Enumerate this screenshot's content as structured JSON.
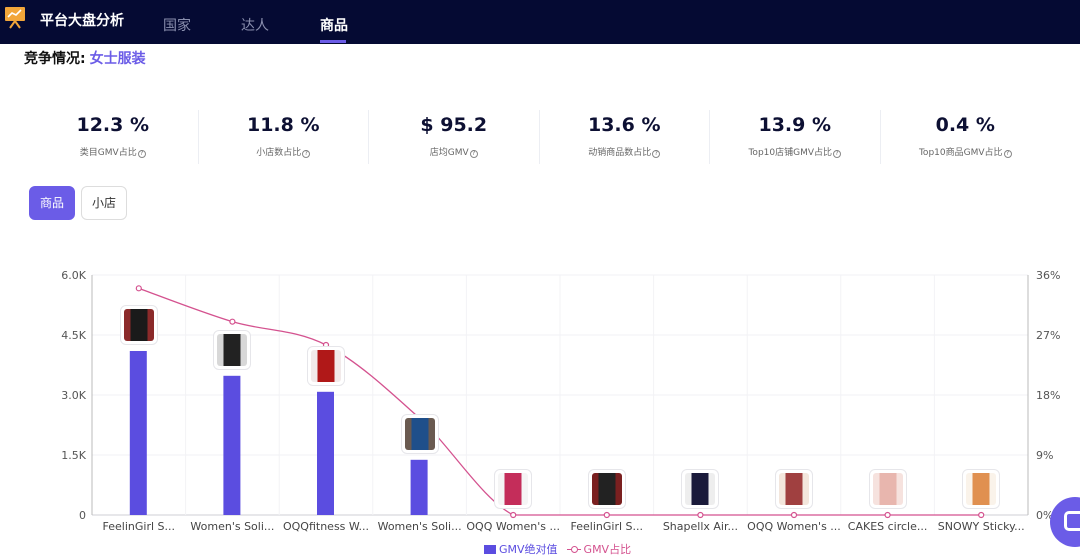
{
  "header": {
    "brand": "平台大盘分析",
    "tabs": [
      {
        "label": "国家",
        "active": false
      },
      {
        "label": "达人",
        "active": false
      },
      {
        "label": "商品",
        "active": true
      }
    ]
  },
  "section": {
    "prefix": "竞争情况:",
    "category": "女士服装"
  },
  "stats": [
    {
      "value": "12.3 %",
      "label": "类目GMV占比"
    },
    {
      "value": "11.8 %",
      "label": "小店数占比"
    },
    {
      "value": "$ 95.2",
      "label": "店均GMV"
    },
    {
      "value": "13.6 %",
      "label": "动销商品数占比"
    },
    {
      "value": "13.9 %",
      "label": "Top10店铺GMV占比"
    },
    {
      "value": "0.4 %",
      "label": "Top10商品GMV占比"
    }
  ],
  "toggles": [
    {
      "label": "商品",
      "active": true
    },
    {
      "label": "小店",
      "active": false
    }
  ],
  "colors": {
    "accent": "#6b5ce7",
    "bar": "#5b4de0",
    "line": "#d4528f",
    "header_bg": "#050a33"
  },
  "chart_data": {
    "type": "bar",
    "categories": [
      "FeelinGirl S...",
      "Women's Soli...",
      "OQQfitness W...",
      "Women's Soli...",
      "OQQ Women's ...",
      "FeelinGirl S...",
      "Shapellx Air...",
      "OQQ Women's ...",
      "CAKES circle...",
      "SNOWY Sticky..."
    ],
    "series": [
      {
        "name": "GMV绝对值",
        "type": "bar",
        "axis": "left",
        "values": [
          4100,
          3480,
          3080,
          1380,
          0,
          0,
          0,
          0,
          0,
          0
        ]
      },
      {
        "name": "GMV占比",
        "type": "line",
        "axis": "right",
        "values": [
          34,
          29,
          25.5,
          14.5,
          0,
          0,
          0,
          0,
          0,
          0
        ]
      }
    ],
    "y_left": {
      "min": 0,
      "max": 6000,
      "ticks": [
        "0",
        "1.5K",
        "3.0K",
        "4.5K",
        "6.0K"
      ]
    },
    "y_right": {
      "min": 0,
      "max": 36,
      "ticks": [
        "0%",
        "9%",
        "18%",
        "27%",
        "36%"
      ]
    },
    "grid": true,
    "legend": "bottom-center",
    "thumbnails": [
      {
        "bg": "#8b2a2a",
        "fg": "#1a1a1a"
      },
      {
        "bg": "#d8d8d8",
        "fg": "#222"
      },
      {
        "bg": "#f2eaea",
        "fg": "#b01818"
      },
      {
        "bg": "#6a5a50",
        "fg": "#1f4f8a"
      },
      {
        "bg": "#f5f5f5",
        "fg": "#c42d5a"
      },
      {
        "bg": "#7a2020",
        "fg": "#222"
      },
      {
        "bg": "#eeeeee",
        "fg": "#1a1a3a"
      },
      {
        "bg": "#f3e6dc",
        "fg": "#a04040"
      },
      {
        "bg": "#f6e2de",
        "fg": "#e8b6ae"
      },
      {
        "bg": "#faf3ea",
        "fg": "#e09050"
      }
    ]
  }
}
